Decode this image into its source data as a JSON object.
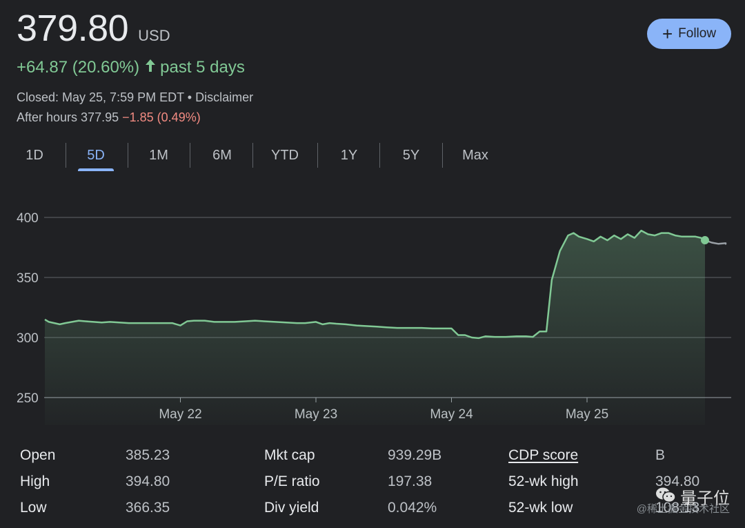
{
  "quote": {
    "price": "379.80",
    "currency": "USD",
    "change": "+64.87 (20.60%)",
    "change_period": "past 5 days",
    "closed_text": "Closed: May 25, 7:59 PM EDT • Disclaimer",
    "after_hours_label": "After hours 377.95",
    "after_hours_change": "−1.85 (0.49%)"
  },
  "follow": {
    "label": "Follow",
    "icon": "plus-icon"
  },
  "tabs": [
    "1D",
    "5D",
    "1M",
    "6M",
    "YTD",
    "1Y",
    "5Y",
    "Max"
  ],
  "active_tab": "5D",
  "colors": {
    "positive": "#81c995",
    "negative": "#f28b82",
    "accent": "#8ab4f8",
    "after_hours_line": "#9aa0a6",
    "background": "#202124"
  },
  "chart_data": {
    "type": "area",
    "ylim": [
      250,
      400
    ],
    "yticks": [
      400,
      350,
      300,
      250
    ],
    "ytick_labels": [
      "400",
      "350",
      "300",
      "250"
    ],
    "xticks": [
      1,
      2,
      3,
      4
    ],
    "xtick_labels": [
      "May 22",
      "May 23",
      "May 24",
      "May 25"
    ],
    "xlim": [
      0,
      5
    ],
    "grid": true,
    "series": [
      {
        "points": [
          [
            0.0,
            315
          ],
          [
            0.03,
            313
          ],
          [
            0.07,
            312
          ],
          [
            0.11,
            311
          ],
          [
            0.15,
            312
          ],
          [
            0.2,
            313
          ],
          [
            0.25,
            314
          ],
          [
            0.3,
            313.5
          ],
          [
            0.36,
            313
          ],
          [
            0.42,
            312.5
          ],
          [
            0.48,
            313
          ],
          [
            0.55,
            312.5
          ],
          [
            0.62,
            312
          ],
          [
            0.7,
            312
          ],
          [
            0.78,
            312
          ],
          [
            0.86,
            312
          ],
          [
            0.94,
            312
          ],
          [
            1.0,
            310
          ],
          [
            1.05,
            313.5
          ],
          [
            1.1,
            314
          ],
          [
            1.18,
            314
          ],
          [
            1.25,
            313
          ],
          [
            1.33,
            313
          ],
          [
            1.4,
            313
          ],
          [
            1.48,
            313.5
          ],
          [
            1.55,
            314
          ],
          [
            1.62,
            313.5
          ],
          [
            1.7,
            313
          ],
          [
            1.78,
            312.5
          ],
          [
            1.86,
            312
          ],
          [
            1.92,
            312
          ],
          [
            2.0,
            313
          ],
          [
            2.05,
            311
          ],
          [
            2.1,
            312
          ],
          [
            2.15,
            311.5
          ],
          [
            2.22,
            311
          ],
          [
            2.3,
            310
          ],
          [
            2.38,
            309.5
          ],
          [
            2.45,
            309
          ],
          [
            2.52,
            308.5
          ],
          [
            2.6,
            308
          ],
          [
            2.7,
            308
          ],
          [
            2.78,
            308
          ],
          [
            2.86,
            307.5
          ],
          [
            2.94,
            307.5
          ],
          [
            3.0,
            307.5
          ],
          [
            3.05,
            302
          ],
          [
            3.1,
            302
          ],
          [
            3.15,
            300
          ],
          [
            3.2,
            299.5
          ],
          [
            3.25,
            301
          ],
          [
            3.32,
            300.5
          ],
          [
            3.4,
            300.5
          ],
          [
            3.48,
            301
          ],
          [
            3.55,
            301
          ],
          [
            3.6,
            300.5
          ],
          [
            3.65,
            305
          ],
          [
            3.7,
            305
          ],
          [
            3.74,
            348
          ],
          [
            3.8,
            372
          ],
          [
            3.86,
            385
          ],
          [
            3.9,
            387
          ],
          [
            3.94,
            384
          ],
          [
            4.0,
            382
          ],
          [
            4.05,
            380
          ],
          [
            4.1,
            384
          ],
          [
            4.15,
            381
          ],
          [
            4.2,
            385
          ],
          [
            4.25,
            382
          ],
          [
            4.3,
            386
          ],
          [
            4.35,
            383
          ],
          [
            4.4,
            389
          ],
          [
            4.45,
            386
          ],
          [
            4.5,
            385
          ],
          [
            4.55,
            387
          ],
          [
            4.6,
            387
          ],
          [
            4.65,
            385
          ],
          [
            4.7,
            384
          ],
          [
            4.75,
            384
          ],
          [
            4.8,
            384
          ],
          [
            4.84,
            383
          ],
          [
            4.87,
            381
          ]
        ]
      },
      {
        "kind": "after_hours",
        "points": [
          [
            4.87,
            381
          ],
          [
            4.92,
            379
          ],
          [
            4.97,
            378
          ],
          [
            5.02,
            378.5
          ],
          [
            5.07,
            378
          ],
          [
            5.12,
            378.5
          ],
          [
            5.16,
            377.95
          ]
        ]
      }
    ],
    "current_point": [
      4.87,
      381
    ]
  },
  "stats": [
    {
      "label": "Open",
      "value": "385.23"
    },
    {
      "label": "High",
      "value": "394.80"
    },
    {
      "label": "Low",
      "value": "366.35"
    },
    {
      "label": "Mkt cap",
      "value": "939.29B"
    },
    {
      "label": "P/E ratio",
      "value": "197.38"
    },
    {
      "label": "Div yield",
      "value": "0.042%"
    },
    {
      "label": "CDP score",
      "value": "B"
    },
    {
      "label": "52-wk high",
      "value": "394.80"
    },
    {
      "label": "52-wk low",
      "value": "108.13"
    }
  ],
  "watermark": {
    "brand": "量子位",
    "sub": "@稀土掘金技术社区"
  }
}
